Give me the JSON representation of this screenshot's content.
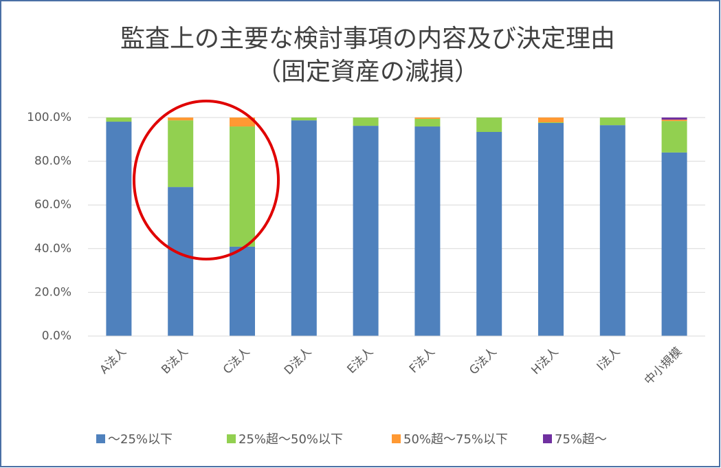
{
  "chart_data": {
    "type": "stacked_bar",
    "title": "監査上の主要な検討事項の内容及び決定理由",
    "subtitle": "（固定資産の減損）",
    "categories": [
      "A法人",
      "B法人",
      "C法人",
      "D法人",
      "E法人",
      "F法人",
      "G法人",
      "H法人",
      "I法人",
      "中小規模"
    ],
    "series": [
      {
        "name": "～25%以下",
        "color": "#4f81bd",
        "values": [
          98.1,
          68.2,
          40.9,
          98.7,
          96.2,
          95.9,
          93.4,
          97.5,
          96.5,
          84.0
        ]
      },
      {
        "name": "25%超～50%以下",
        "color": "#92d050",
        "values": [
          1.9,
          30.5,
          55.0,
          1.3,
          3.8,
          3.5,
          6.6,
          0.3,
          3.5,
          14.4
        ]
      },
      {
        "name": "50%超～75%以下",
        "color": "#ff9933",
        "values": [
          0,
          1.3,
          4.1,
          0,
          0,
          0.6,
          0,
          2.2,
          0,
          0.6
        ]
      },
      {
        "name": "75%超～",
        "color": "#7030a0",
        "values": [
          0,
          0,
          0,
          0,
          0,
          0,
          0,
          0,
          0,
          1.0
        ]
      }
    ],
    "ylim": [
      0,
      100
    ],
    "yticks": [
      {
        "value": 0,
        "label": "0.0%"
      },
      {
        "value": 20,
        "label": "20.0%"
      },
      {
        "value": 40,
        "label": "40.0%"
      },
      {
        "value": 60,
        "label": "60.0%"
      },
      {
        "value": 80,
        "label": "80.0%"
      },
      {
        "value": 100,
        "label": "100.0%"
      }
    ],
    "grid": true,
    "legend": "bottom"
  }
}
